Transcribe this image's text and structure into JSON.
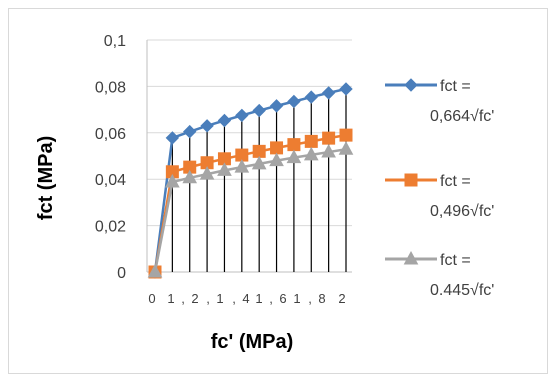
{
  "chart_data": {
    "type": "line",
    "xlabel": "fc' (MPa)",
    "ylabel": "fct (MPa)",
    "ylim": [
      0,
      0.1
    ],
    "y_ticks": [
      "0",
      "0,02",
      "0,04",
      "0,06",
      "0,08",
      "0,1"
    ],
    "x_tick_labels": [
      "0",
      "1",
      ",",
      "2",
      ",",
      "1",
      ",",
      "4",
      "1",
      ",",
      "6",
      "1",
      ",",
      "8",
      "2"
    ],
    "grid": "horizontal",
    "legend_position": "right",
    "drop_lines": true,
    "series": [
      {
        "name_lines": [
          "fct =",
          "0,664√fc'"
        ],
        "color": "#4a7ebb",
        "marker": "diamond",
        "values": [
          0,
          0.0578,
          0.0605,
          0.063,
          0.0653,
          0.0675,
          0.0696,
          0.0716,
          0.0735,
          0.0754,
          0.0772,
          0.0789
        ]
      },
      {
        "name_lines": [
          "fct =",
          "0,496√fc'"
        ],
        "color": "#ed7d31",
        "marker": "square",
        "values": [
          0,
          0.0432,
          0.0452,
          0.0471,
          0.0488,
          0.0504,
          0.052,
          0.0535,
          0.0549,
          0.0563,
          0.0577,
          0.059
        ]
      },
      {
        "name_lines": [
          "fct =",
          "0.445√fc'"
        ],
        "color": "#a5a5a5",
        "marker": "triangle",
        "values": [
          0,
          0.0388,
          0.0406,
          0.0422,
          0.0438,
          0.0452,
          0.0466,
          0.048,
          0.0493,
          0.0505,
          0.0517,
          0.0529
        ]
      }
    ]
  }
}
